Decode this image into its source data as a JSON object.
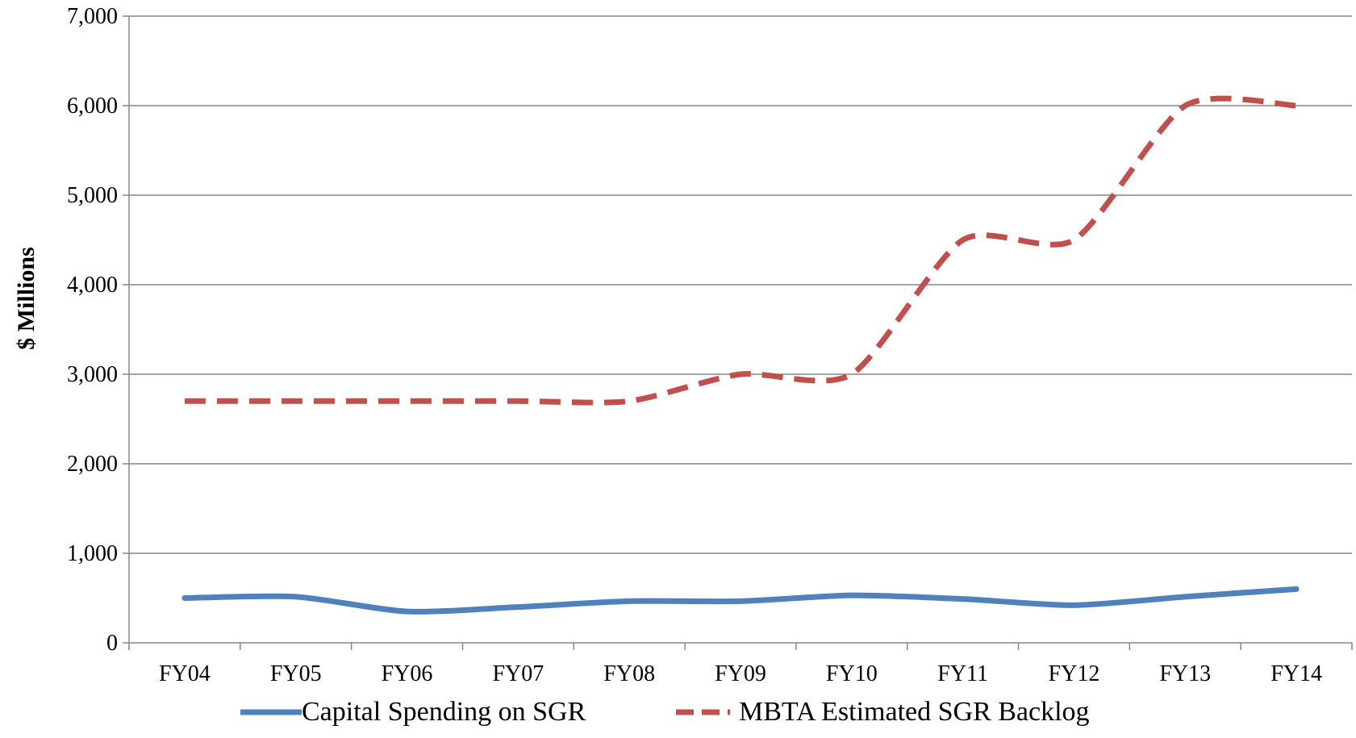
{
  "chart_data": {
    "type": "line",
    "title": "",
    "xlabel": "",
    "ylabel": "$ Millions",
    "categories": [
      "FY04",
      "FY05",
      "FY06",
      "FY07",
      "FY08",
      "FY09",
      "FY10",
      "FY11",
      "FY12",
      "FY13",
      "FY14"
    ],
    "ylim": [
      0,
      7000
    ],
    "yticks": [
      0,
      1000,
      2000,
      3000,
      4000,
      5000,
      6000,
      7000
    ],
    "ytick_labels": [
      "0",
      "1,000",
      "2,000",
      "3,000",
      "4,000",
      "5,000",
      "6,000",
      "7,000"
    ],
    "grid": true,
    "legend_position": "bottom",
    "series": [
      {
        "name": "Capital Spending on SGR",
        "style": "solid",
        "color": "#4F81BD",
        "values": [
          500,
          515,
          350,
          400,
          465,
          465,
          530,
          490,
          420,
          515,
          600
        ]
      },
      {
        "name": "MBTA Estimated SGR Backlog",
        "style": "dashed",
        "color": "#C0504D",
        "values": [
          2700,
          2700,
          2700,
          2700,
          2700,
          3000,
          3000,
          4500,
          4500,
          6000,
          6000
        ]
      }
    ]
  }
}
